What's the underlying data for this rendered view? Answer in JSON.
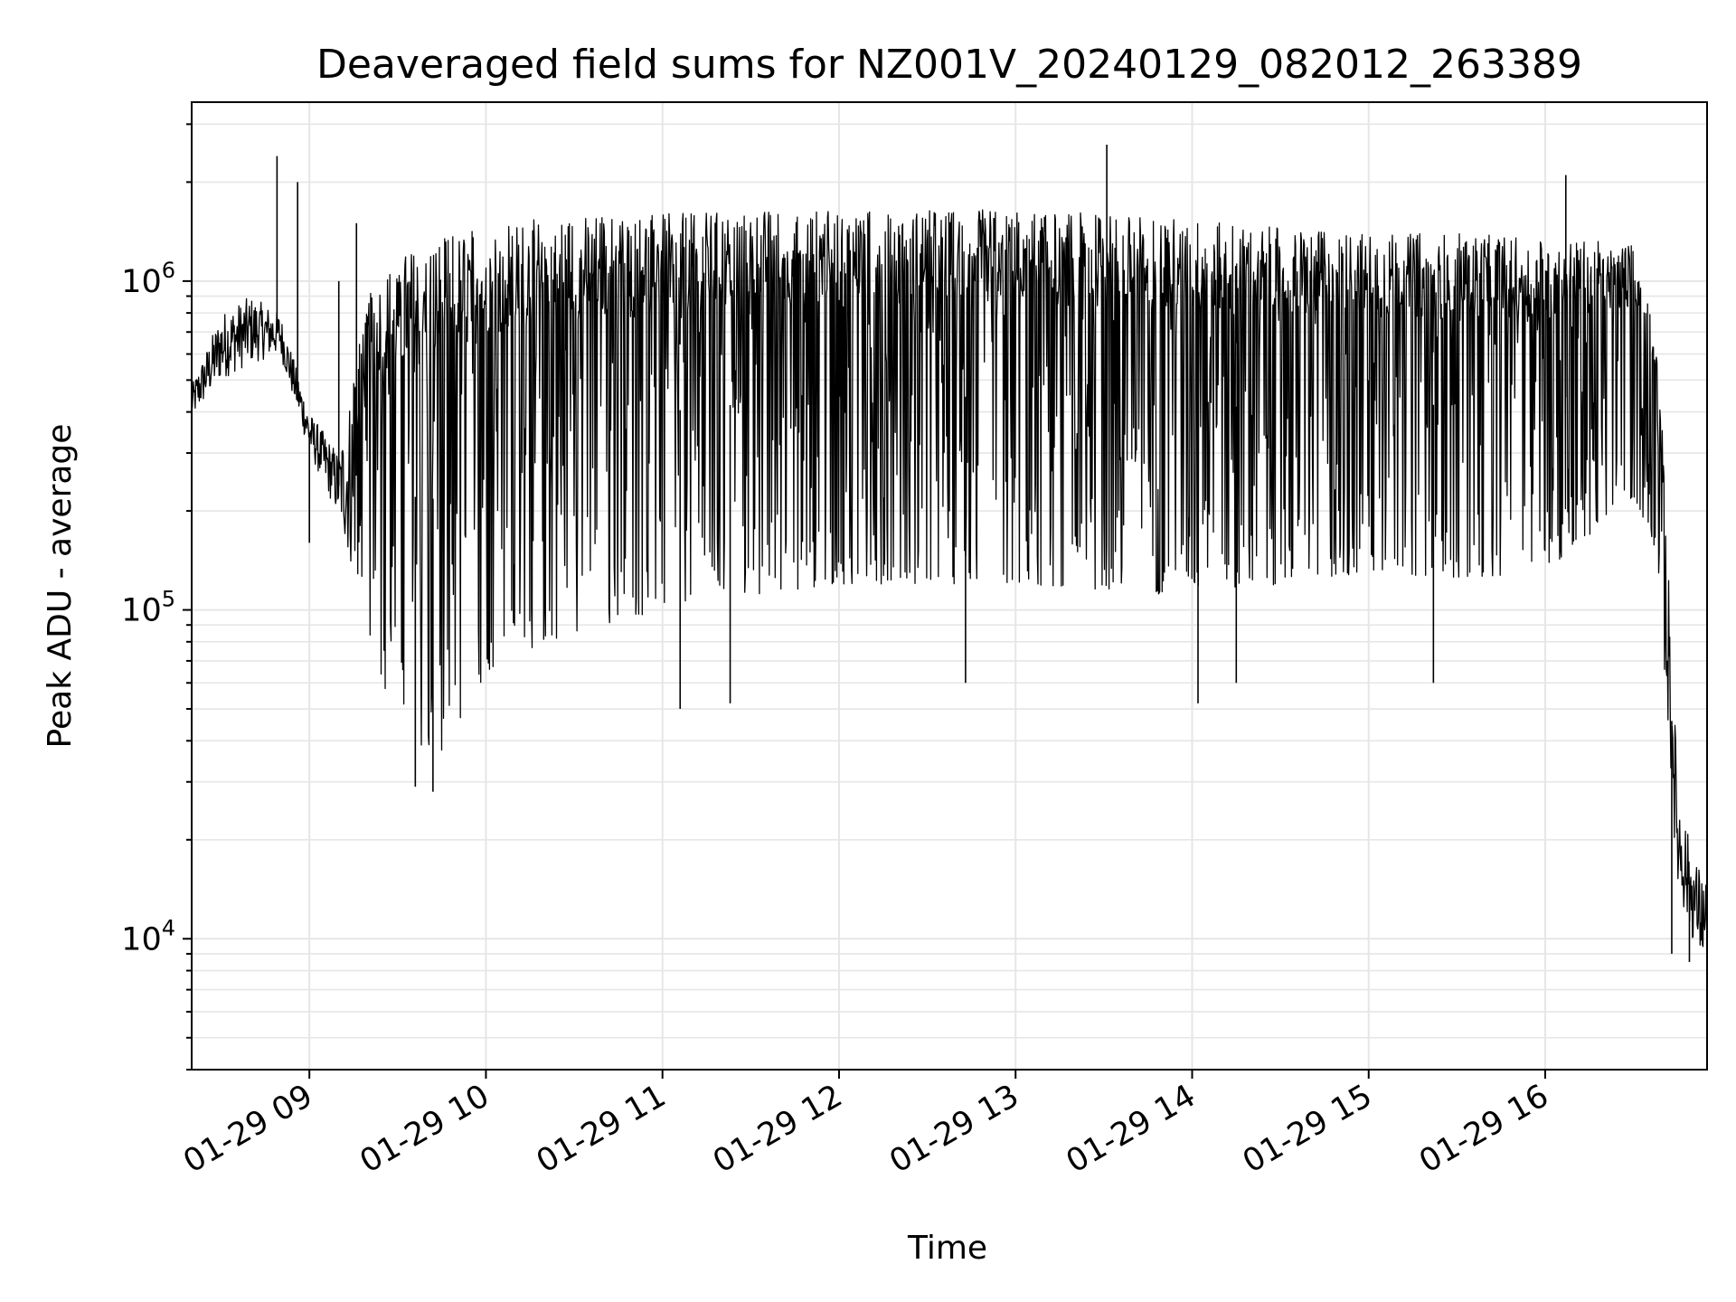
{
  "chart_data": {
    "type": "line",
    "title": "Deaveraged field sums for NZ001V_20240129_082012_263389",
    "xlabel": "Time",
    "ylabel": "Peak ADU - average",
    "yscale": "log",
    "xlim": [
      "2024-01-29 08:20",
      "2024-01-29 16:55"
    ],
    "ylim": [
      4000,
      3500000
    ],
    "x_ticks": [
      {
        "value": "2024-01-29 09:00",
        "label": "01-29 09"
      },
      {
        "value": "2024-01-29 10:00",
        "label": "01-29 10"
      },
      {
        "value": "2024-01-29 11:00",
        "label": "01-29 11"
      },
      {
        "value": "2024-01-29 12:00",
        "label": "01-29 12"
      },
      {
        "value": "2024-01-29 13:00",
        "label": "01-29 13"
      },
      {
        "value": "2024-01-29 14:00",
        "label": "01-29 14"
      },
      {
        "value": "2024-01-29 15:00",
        "label": "01-29 15"
      },
      {
        "value": "2024-01-29 16:00",
        "label": "01-29 16"
      }
    ],
    "y_ticks": [
      {
        "value": 10000,
        "base": "10",
        "exp": "4"
      },
      {
        "value": 100000,
        "base": "10",
        "exp": "5"
      },
      {
        "value": 1000000,
        "base": "10",
        "exp": "6"
      }
    ],
    "grid": true,
    "line_color": "#000000",
    "grid_color": "#e6e6e6",
    "series": [
      {
        "x": [
          "2024-01-29 08:20",
          "2024-01-29 08:30",
          "2024-01-29 08:40",
          "2024-01-29 08:50",
          "2024-01-29 09:00",
          "2024-01-29 09:10",
          "2024-01-29 09:20",
          "2024-01-29 09:30",
          "2024-01-29 09:40",
          "2024-01-29 09:50",
          "2024-01-29 10:00",
          "2024-01-29 10:20",
          "2024-01-29 10:40",
          "2024-01-29 11:00",
          "2024-01-29 11:30",
          "2024-01-29 12:00",
          "2024-01-29 12:30",
          "2024-01-29 13:00",
          "2024-01-29 13:30",
          "2024-01-29 14:00",
          "2024-01-29 14:30",
          "2024-01-29 15:00",
          "2024-01-29 15:30",
          "2024-01-29 16:00",
          "2024-01-29 16:30",
          "2024-01-29 16:38",
          "2024-01-29 16:45",
          "2024-01-29 16:50",
          "2024-01-29 16:55"
        ],
        "low": [
          380000,
          500000,
          560000,
          600000,
          300000,
          190000,
          80000,
          45000,
          35000,
          40000,
          65000,
          80000,
          90000,
          100000,
          110000,
          120000,
          120000,
          120000,
          115000,
          110000,
          120000,
          130000,
          125000,
          130000,
          220000,
          150000,
          14000,
          10000,
          8000
        ],
        "high": [
          480000,
          800000,
          900000,
          800000,
          400000,
          300000,
          900000,
          1200000,
          1300000,
          1400000,
          1500000,
          1550000,
          1600000,
          1600000,
          1650000,
          1650000,
          1650000,
          1650000,
          1600000,
          1550000,
          1450000,
          1400000,
          1400000,
          1350000,
          1300000,
          800000,
          30000,
          18000,
          15000
        ],
        "spikes": [
          {
            "x": "2024-01-29 08:49",
            "y": 2400000
          },
          {
            "x": "2024-01-29 08:56",
            "y": 2000000
          },
          {
            "x": "2024-01-29 09:10",
            "y": 1000000
          },
          {
            "x": "2024-01-29 09:16",
            "y": 1500000
          },
          {
            "x": "2024-01-29 13:31",
            "y": 2600000
          },
          {
            "x": "2024-01-29 16:07",
            "y": 2100000
          },
          {
            "x": "2024-01-29 09:00",
            "y": 160000
          },
          {
            "x": "2024-01-29 09:42",
            "y": 28000
          },
          {
            "x": "2024-01-29 09:36",
            "y": 29000
          },
          {
            "x": "2024-01-29 11:06",
            "y": 50000
          },
          {
            "x": "2024-01-29 11:23",
            "y": 52000
          },
          {
            "x": "2024-01-29 12:43",
            "y": 60000
          },
          {
            "x": "2024-01-29 14:02",
            "y": 52000
          },
          {
            "x": "2024-01-29 14:15",
            "y": 60000
          },
          {
            "x": "2024-01-29 15:22",
            "y": 60000
          },
          {
            "x": "2024-01-29 16:43",
            "y": 9000
          },
          {
            "x": "2024-01-29 16:49",
            "y": 8500
          }
        ]
      }
    ]
  }
}
